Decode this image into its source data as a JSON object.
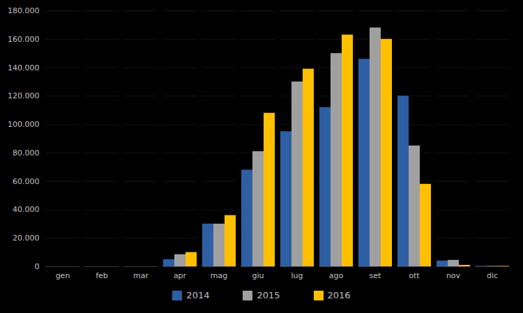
{
  "chart_data": {
    "type": "bar",
    "categories": [
      "gen",
      "feb",
      "mar",
      "apr",
      "mag",
      "giu",
      "lug",
      "ago",
      "set",
      "ott",
      "nov",
      "dic"
    ],
    "series": [
      {
        "name": "2014",
        "color": "#2E5FA3",
        "values": [
          0,
          0,
          0,
          5000,
          30000,
          68000,
          95000,
          112000,
          146000,
          120000,
          4000,
          300
        ]
      },
      {
        "name": "2015",
        "color": "#A0A0A0",
        "values": [
          0,
          0,
          0,
          8500,
          30000,
          81000,
          130000,
          150000,
          168000,
          85000,
          4500,
          300
        ]
      },
      {
        "name": "2016",
        "color": "#FFC000",
        "values": [
          0,
          0,
          0,
          10000,
          36000,
          108000,
          139000,
          163000,
          160000,
          58000,
          1000,
          300
        ]
      }
    ],
    "ylim": [
      0,
      180000
    ],
    "yticks": [
      0,
      {
        "value": 20000,
        "label": "20.000"
      },
      {
        "value": 40000,
        "label": "40.000"
      },
      {
        "value": 60000,
        "label": "60.000"
      },
      {
        "value": 80000,
        "label": "80.000"
      },
      {
        "value": 100000,
        "label": "100.000"
      },
      {
        "value": 120000,
        "label": "120.000"
      },
      {
        "value": 140000,
        "label": "140.000"
      },
      {
        "value": 160000,
        "label": "160.000"
      },
      {
        "value": 180000,
        "label": "180.000"
      }
    ],
    "grid": true,
    "legend": "bottom"
  }
}
